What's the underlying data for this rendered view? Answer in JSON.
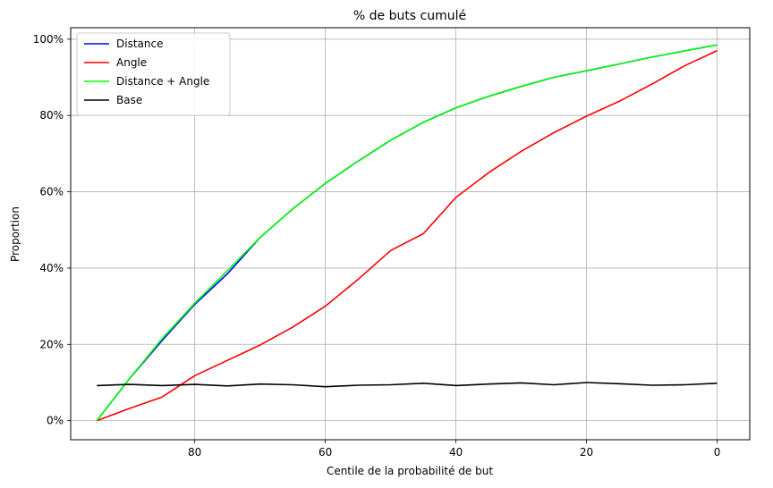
{
  "chart_data": {
    "type": "line",
    "title": "% de buts cumulé",
    "xlabel": "Centile de la probabilité de but",
    "ylabel": "Proportion",
    "x_inverted": true,
    "xlim": [
      99,
      -5
    ],
    "ylim": [
      -0.05,
      1.03
    ],
    "x_ticks": [
      80,
      60,
      40,
      20,
      0
    ],
    "x_tick_labels": [
      "80",
      "60",
      "40",
      "20",
      "0"
    ],
    "y_ticks": [
      0,
      0.2,
      0.4,
      0.6,
      0.8,
      1.0
    ],
    "y_tick_labels": [
      "0%",
      "20%",
      "40%",
      "60%",
      "80%",
      "100%"
    ],
    "grid": true,
    "legend_position": "top-left",
    "x": [
      95,
      90,
      85,
      80,
      75,
      70,
      65,
      60,
      55,
      50,
      45,
      40,
      35,
      30,
      25,
      20,
      15,
      10,
      5,
      0
    ],
    "series": [
      {
        "name": "Distance",
        "color": "#0000ff",
        "values": [
          0.0,
          0.11,
          0.21,
          0.305,
          0.385,
          0.48,
          0.555,
          0.622,
          0.68,
          0.735,
          0.782,
          0.82,
          0.85,
          0.876,
          0.9,
          0.917,
          0.935,
          0.953,
          0.969,
          0.985
        ]
      },
      {
        "name": "Angle",
        "color": "#ff0000",
        "values": [
          0.0,
          0.032,
          0.062,
          0.118,
          0.158,
          0.198,
          0.245,
          0.3,
          0.37,
          0.446,
          0.49,
          0.585,
          0.65,
          0.706,
          0.755,
          0.798,
          0.837,
          0.882,
          0.93,
          0.97
        ]
      },
      {
        "name": "Distance + Angle",
        "color": "#00ff00",
        "values": [
          0.0,
          0.11,
          0.215,
          0.308,
          0.393,
          0.48,
          0.555,
          0.622,
          0.68,
          0.735,
          0.782,
          0.82,
          0.85,
          0.876,
          0.9,
          0.917,
          0.935,
          0.953,
          0.969,
          0.985
        ]
      },
      {
        "name": "Base",
        "color": "#000000",
        "values": [
          0.092,
          0.095,
          0.092,
          0.095,
          0.091,
          0.096,
          0.094,
          0.089,
          0.093,
          0.094,
          0.098,
          0.092,
          0.096,
          0.099,
          0.094,
          0.1,
          0.097,
          0.093,
          0.094,
          0.098
        ]
      }
    ]
  }
}
